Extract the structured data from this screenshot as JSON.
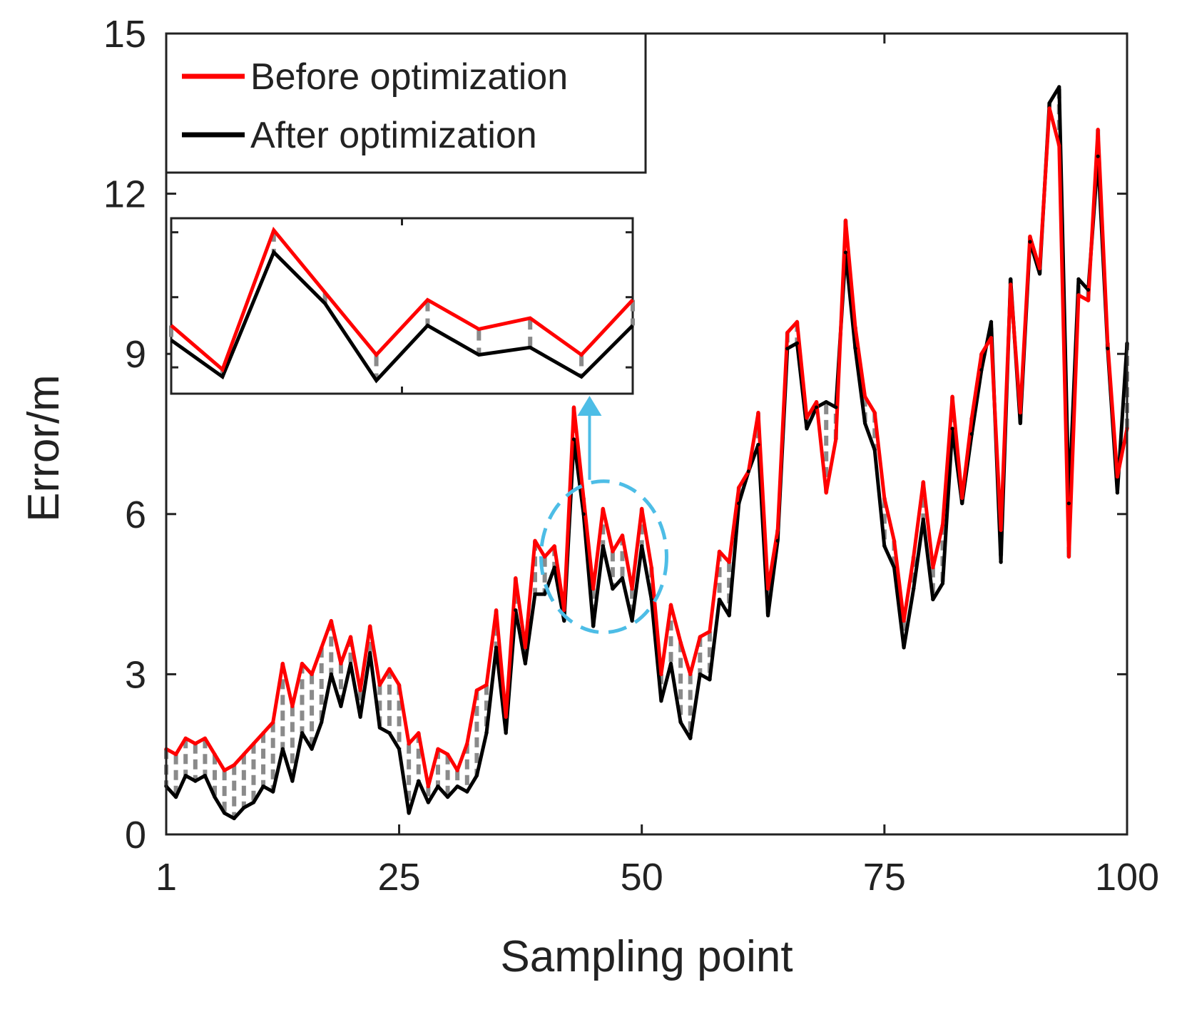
{
  "chart_data": {
    "type": "line",
    "title": "",
    "xlabel": "Sampling point",
    "ylabel": "Error/m",
    "xlim": [
      1,
      100
    ],
    "ylim": [
      0,
      15
    ],
    "xticks": [
      1,
      25,
      50,
      75,
      100
    ],
    "yticks": [
      0,
      3,
      6,
      9,
      12,
      15
    ],
    "x": [
      1,
      2,
      3,
      4,
      5,
      6,
      7,
      8,
      9,
      10,
      11,
      12,
      13,
      14,
      15,
      16,
      17,
      18,
      19,
      20,
      21,
      22,
      23,
      24,
      25,
      26,
      27,
      28,
      29,
      30,
      31,
      32,
      33,
      34,
      35,
      36,
      37,
      38,
      39,
      40,
      41,
      42,
      43,
      44,
      45,
      46,
      47,
      48,
      49,
      50,
      51,
      52,
      53,
      54,
      55,
      56,
      57,
      58,
      59,
      60,
      61,
      62,
      63,
      64,
      65,
      66,
      67,
      68,
      69,
      70,
      71,
      72,
      73,
      74,
      75,
      76,
      77,
      78,
      79,
      80,
      81,
      82,
      83,
      84,
      85,
      86,
      87,
      88,
      89,
      90,
      91,
      92,
      93,
      94,
      95,
      96,
      97,
      98,
      99,
      100
    ],
    "series": [
      {
        "name": "Before optimization",
        "color": "#ff0000",
        "values": [
          1.6,
          1.5,
          1.8,
          1.7,
          1.8,
          1.5,
          1.2,
          1.3,
          1.5,
          1.7,
          1.9,
          2.1,
          3.2,
          2.4,
          3.2,
          3.0,
          3.5,
          4.0,
          3.2,
          3.7,
          2.7,
          3.9,
          2.8,
          3.1,
          2.8,
          1.7,
          1.9,
          0.9,
          1.6,
          1.5,
          1.2,
          1.7,
          2.7,
          2.8,
          4.2,
          2.2,
          4.8,
          3.5,
          5.5,
          5.2,
          5.4,
          4.2,
          8.0,
          6.3,
          4.6,
          6.1,
          5.3,
          5.6,
          4.6,
          6.1,
          5.0,
          3.0,
          4.3,
          3.6,
          3.0,
          3.7,
          3.8,
          5.3,
          5.1,
          6.5,
          6.8,
          7.9,
          4.6,
          5.7,
          9.4,
          9.6,
          7.8,
          8.1,
          6.4,
          7.4,
          11.5,
          9.5,
          8.2,
          7.9,
          6.3,
          5.5,
          4.0,
          5.2,
          6.6,
          5.0,
          5.8,
          8.2,
          6.3,
          7.8,
          9.0,
          9.3,
          5.7,
          10.3,
          7.9,
          11.2,
          10.6,
          13.6,
          12.9,
          5.2,
          10.1,
          10.0,
          13.2,
          9.2,
          6.7,
          7.6
        ]
      },
      {
        "name": "After optimization",
        "color": "#000000",
        "values": [
          0.9,
          0.7,
          1.1,
          1.0,
          1.1,
          0.7,
          0.4,
          0.3,
          0.5,
          0.6,
          0.9,
          0.8,
          1.6,
          1.0,
          1.9,
          1.6,
          2.1,
          3.0,
          2.4,
          3.2,
          2.2,
          3.4,
          2.0,
          1.9,
          1.6,
          0.4,
          1.0,
          0.6,
          0.9,
          0.7,
          0.9,
          0.8,
          1.1,
          1.9,
          3.5,
          1.9,
          4.2,
          3.2,
          4.5,
          4.5,
          5.0,
          4.0,
          7.4,
          6.0,
          3.9,
          5.4,
          4.6,
          4.8,
          4.0,
          5.4,
          4.4,
          2.5,
          3.2,
          2.1,
          1.8,
          3.0,
          2.9,
          4.4,
          4.1,
          6.2,
          6.8,
          7.3,
          4.1,
          5.5,
          9.1,
          9.2,
          7.6,
          8.0,
          8.1,
          8.0,
          10.9,
          9.1,
          7.7,
          7.2,
          5.4,
          5.0,
          3.5,
          4.6,
          5.9,
          4.4,
          4.7,
          7.6,
          6.2,
          7.5,
          8.7,
          9.6,
          5.1,
          10.4,
          7.7,
          11.1,
          10.5,
          13.7,
          14.0,
          6.2,
          10.4,
          10.2,
          12.7,
          9.1,
          6.4,
          9.2
        ]
      }
    ],
    "inset": {
      "x_range": [
        41,
        50
      ],
      "note_shape": "dashed circle with arrow pointing to zoomed inset"
    },
    "legend": {
      "placement": "top-left",
      "box": true
    }
  }
}
